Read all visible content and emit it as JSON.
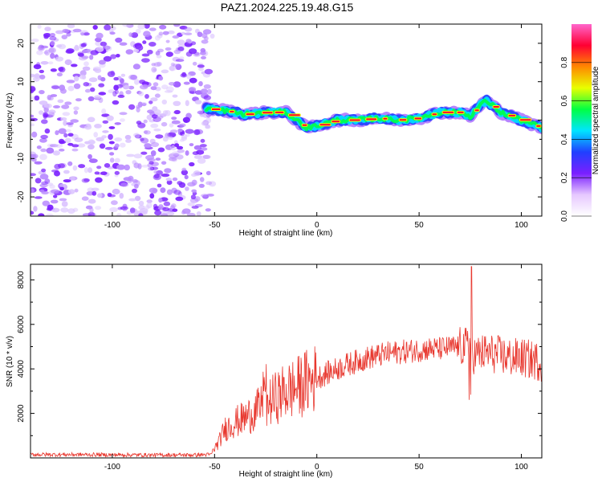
{
  "title": "PAZ1.2024.225.19.48.G15",
  "colors": {
    "snr_line": "#e8382f",
    "noise_purple": "#7a1fff",
    "frame": "#000000"
  },
  "chart_data": [
    {
      "type": "heatmap",
      "xlabel": "Height of straight line (km)",
      "ylabel": "Frequency (Hz)",
      "xlim": [
        -140,
        110
      ],
      "ylim": [
        -25,
        25
      ],
      "xticks": [
        -100,
        -50,
        0,
        50,
        100
      ],
      "yticks": [
        -20,
        -10,
        0,
        10,
        20
      ],
      "colorbar": {
        "label": "Normalized spectral amplitude",
        "range": [
          0,
          1
        ],
        "ticks": [
          0.0,
          0.2,
          0.4,
          0.6,
          0.8
        ],
        "colormap": [
          "#ffffff",
          "#e6c8ff",
          "#7a1fff",
          "#2040ff",
          "#00e5ff",
          "#00ff44",
          "#e8ff00",
          "#ff8800",
          "#ff0033",
          "#ff66cc"
        ]
      },
      "noise_region_x": [
        -140,
        -53
      ],
      "signal_track": {
        "x": [
          -54,
          -45,
          -35,
          -25,
          -15,
          -5,
          0,
          10,
          20,
          30,
          40,
          50,
          60,
          70,
          75,
          80,
          83,
          90,
          100,
          110
        ],
        "freq": [
          3,
          2.5,
          1.5,
          2,
          2,
          -2,
          -1.5,
          0,
          0,
          0.5,
          0,
          0.5,
          2,
          2,
          1,
          4,
          5,
          2,
          0,
          -2
        ]
      }
    },
    {
      "type": "line",
      "xlabel": "Height of straight line (km)",
      "ylabel": "SNR (10 * v/v)",
      "xlim": [
        -140,
        110
      ],
      "ylim": [
        0,
        8700
      ],
      "xticks": [
        -100,
        -50,
        0,
        50,
        100
      ],
      "yticks": [
        2000,
        4000,
        6000,
        8000
      ],
      "series": [
        {
          "x": [
            -140,
            -120,
            -100,
            -80,
            -60,
            -52,
            -48,
            -45,
            -40,
            -35,
            -30,
            -25,
            -20,
            -15,
            -10,
            -5,
            0,
            5,
            10,
            15,
            20,
            25,
            30,
            35,
            40,
            45,
            50,
            55,
            60,
            65,
            70,
            73,
            75,
            77,
            80,
            85,
            90,
            95,
            100,
            105,
            110
          ],
          "y": [
            150,
            150,
            140,
            130,
            130,
            150,
            700,
            1300,
            1600,
            1800,
            2100,
            2400,
            2700,
            3000,
            3150,
            3400,
            3600,
            3800,
            4000,
            4200,
            4350,
            4500,
            4600,
            4700,
            4750,
            4800,
            4850,
            4900,
            4900,
            4950,
            5000,
            5000,
            5000,
            4600,
            4700,
            4700,
            4600,
            4500,
            4500,
            4400,
            4300
          ]
        }
      ]
    }
  ]
}
